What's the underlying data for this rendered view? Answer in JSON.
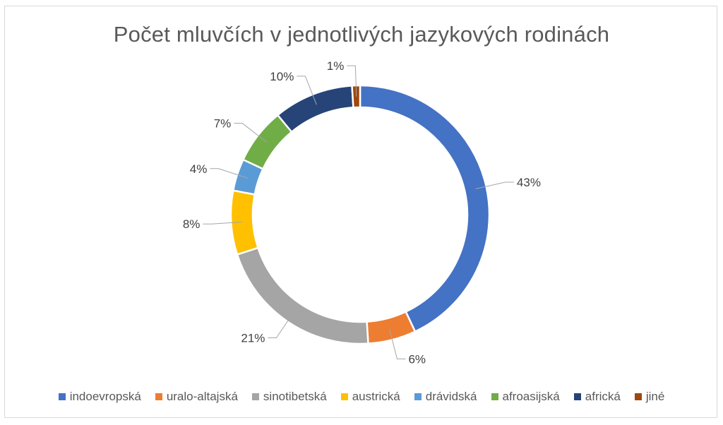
{
  "chart_data": {
    "type": "pie",
    "variant": "doughnut",
    "title": "Počet mluvčích v jednotlivých jazykových rodinách",
    "categories": [
      "indoevropská",
      "uralo-altajská",
      "sinotibetská",
      "austrická",
      "drávidská",
      "afroasijská",
      "africká",
      "jiné"
    ],
    "values": [
      43,
      6,
      21,
      8,
      4,
      7,
      10,
      1
    ],
    "labels": [
      "43%",
      "6%",
      "21%",
      "8%",
      "4%",
      "7%",
      "10%",
      "1%"
    ],
    "colors": [
      "#4472c4",
      "#ed7d31",
      "#a5a5a5",
      "#ffc000",
      "#5b9bd5",
      "#70ad47",
      "#264478",
      "#9e480e"
    ],
    "legend_position": "bottom"
  }
}
